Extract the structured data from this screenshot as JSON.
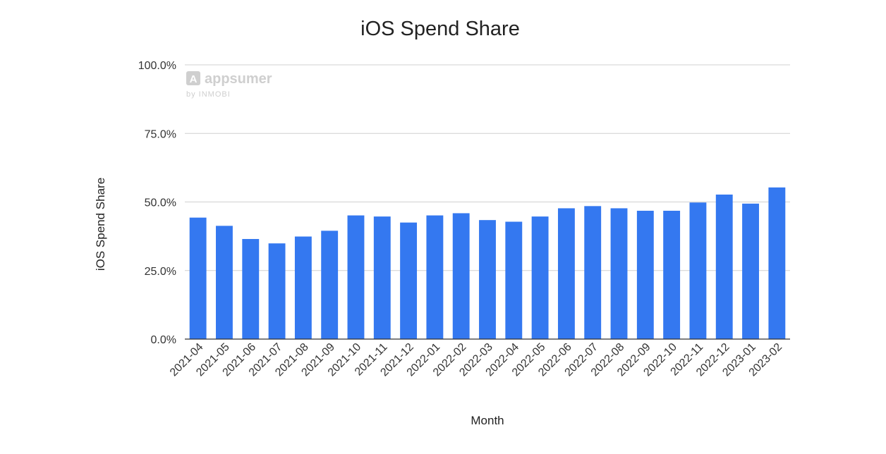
{
  "chart_data": {
    "type": "bar",
    "title": "iOS Spend Share",
    "xlabel": "Month",
    "ylabel": "iOS Spend Share",
    "ylim": [
      0,
      100
    ],
    "yticks": [
      "0.0%",
      "25.0%",
      "50.0%",
      "75.0%",
      "100.0%"
    ],
    "grid": true,
    "colors": {
      "bar": "#3478f0",
      "grid": "#d0d0d0",
      "axis": "#333333"
    },
    "categories": [
      "2021-04",
      "2021-05",
      "2021-06",
      "2021-07",
      "2021-08",
      "2021-09",
      "2021-10",
      "2021-11",
      "2021-12",
      "2022-01",
      "2022-02",
      "2022-03",
      "2022-04",
      "2022-05",
      "2022-06",
      "2022-07",
      "2022-08",
      "2022-09",
      "2022-10",
      "2022-11",
      "2022-12",
      "2023-01",
      "2023-02"
    ],
    "values": [
      44.3,
      41.3,
      36.5,
      34.9,
      37.4,
      39.5,
      45.1,
      44.7,
      42.5,
      45.1,
      45.9,
      43.4,
      42.8,
      44.7,
      47.7,
      48.5,
      47.7,
      46.8,
      46.8,
      49.8,
      52.7,
      49.4,
      55.3
    ]
  },
  "watermark": {
    "logo_letter": "A",
    "brand": "appsumer",
    "byline": "by INMOBI",
    "icon": "appsumer-logo-icon"
  }
}
